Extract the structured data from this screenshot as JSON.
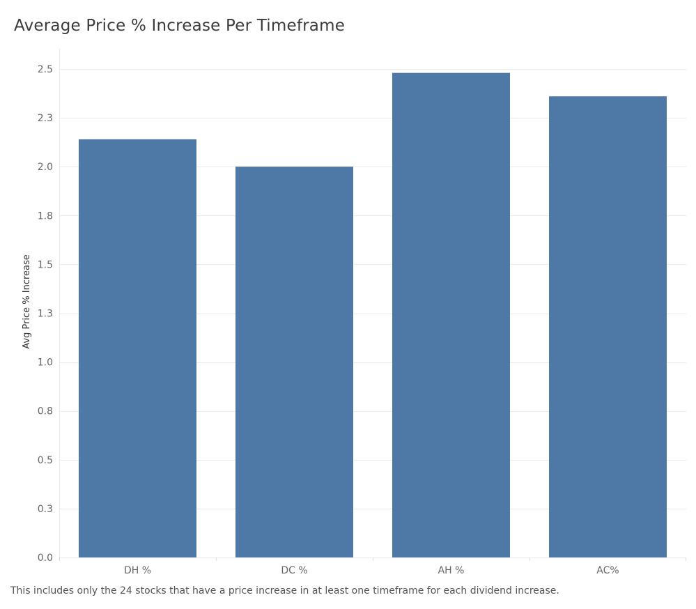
{
  "chart_data": {
    "type": "bar",
    "title": "Average Price % Increase Per Timeframe",
    "ylabel": "Avg Price % Increase",
    "xlabel": "",
    "categories": [
      "DH %",
      "DC %",
      "AH %",
      "AC%"
    ],
    "values": [
      2.14,
      2.0,
      2.48,
      2.36
    ],
    "ylim": [
      0,
      2.5
    ],
    "yticks": [
      0.0,
      0.25,
      0.5,
      0.75,
      1.0,
      1.25,
      1.5,
      1.75,
      2.0,
      2.25,
      2.5
    ],
    "ytick_labels": [
      "0.0",
      "0.3",
      "0.5",
      "0.8",
      "1.0",
      "1.3",
      "1.5",
      "1.8",
      "2.0",
      "2.3",
      "2.5"
    ],
    "grid": true,
    "bar_color": "#4e79a7",
    "footnote": "This includes only the 24 stocks that have a price increase in at least one timeframe for each dividend increase."
  }
}
